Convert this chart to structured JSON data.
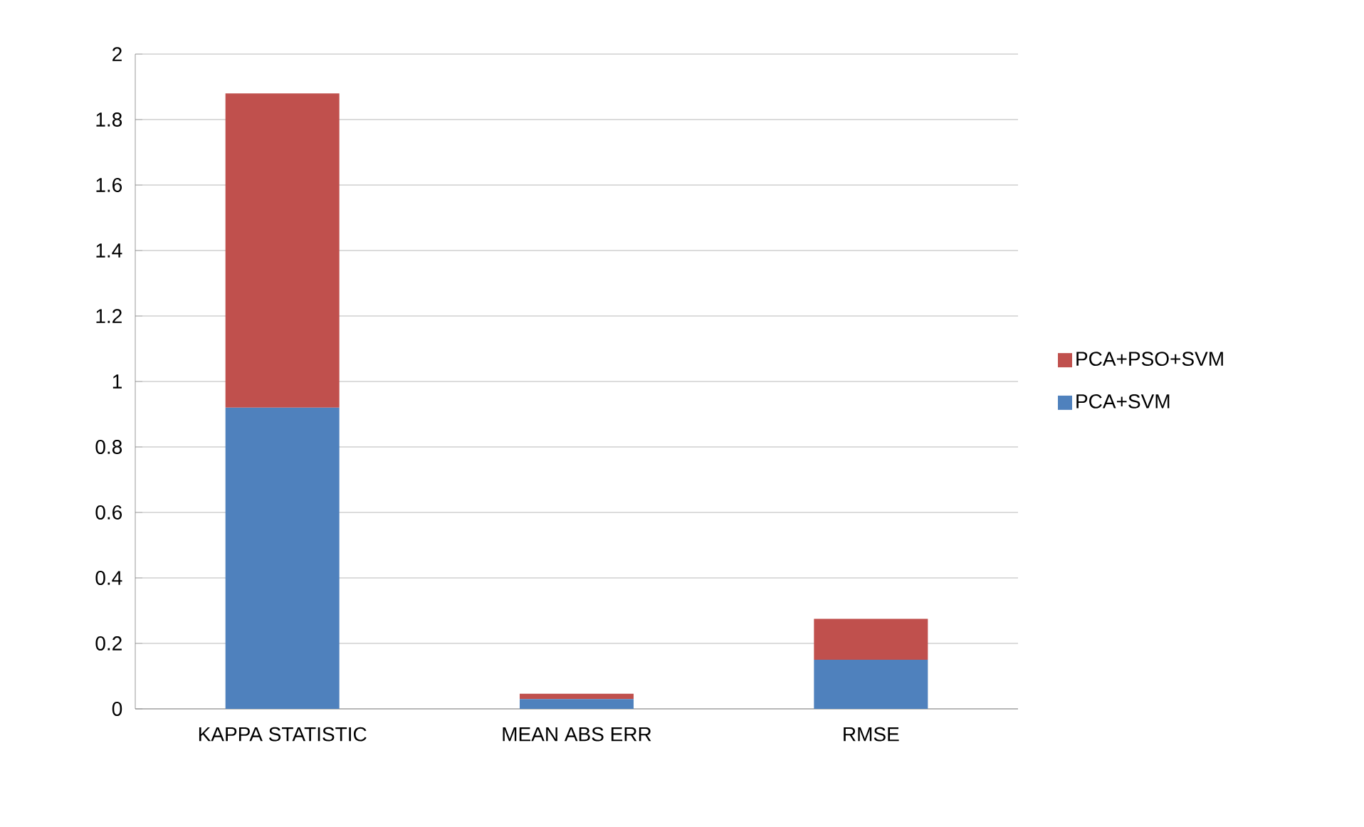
{
  "chart_data": {
    "type": "bar",
    "stacked": true,
    "categories": [
      "KAPPA STATISTIC",
      "MEAN ABS ERR",
      "RMSE"
    ],
    "series": [
      {
        "name": "PCA+SVM",
        "color": "#4f81bd",
        "values": [
          0.92,
          0.03,
          0.15
        ]
      },
      {
        "name": "PCA+PSO+SVM",
        "color": "#c0504d",
        "values": [
          0.96,
          0.016,
          0.125
        ]
      }
    ],
    "ylim": [
      0,
      2
    ],
    "yticks": [
      0,
      0.2,
      0.4,
      0.6,
      0.8,
      1,
      1.2,
      1.4,
      1.6,
      1.8,
      2
    ],
    "grid": "y",
    "legend": "right"
  }
}
